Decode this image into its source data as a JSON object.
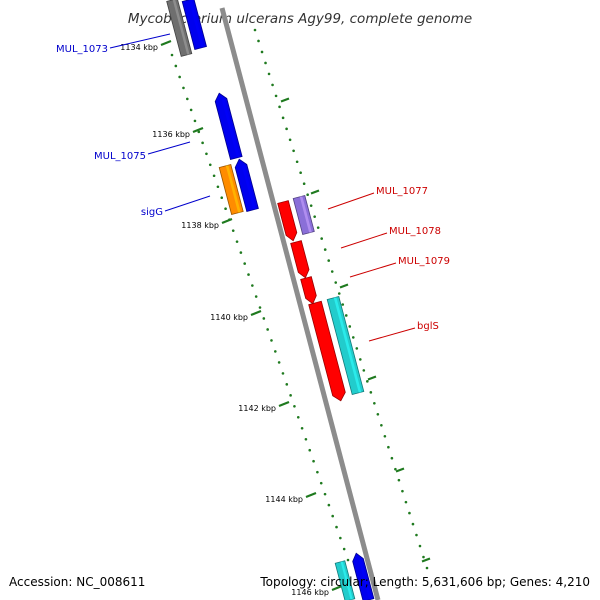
{
  "title": "Mycobacterium ulcerans Agy99, complete genome",
  "footer": {
    "accession": "Accession: NC_008611",
    "summary": "Topology: circular; Length: 5,631,606 bp; Genes: 4,210"
  },
  "colors": {
    "backbone": "#8c8c8c",
    "tick": "#1f7a1f",
    "forward_label": "#0000cc",
    "reverse_label": "#cc0000",
    "gene_blue": "#0000ee",
    "gene_gray": "#6f6f6f",
    "gene_orange": "#ff8c00",
    "gene_red": "#ff0000",
    "gene_purple": "#8a6fd8",
    "gene_cyan": "#22cccc"
  },
  "ticks": [
    {
      "label": "1134 kbp"
    },
    {
      "label": "1136 kbp"
    },
    {
      "label": "1138 kbp"
    },
    {
      "label": "1140 kbp"
    },
    {
      "label": "1142 kbp"
    },
    {
      "label": "1144 kbp"
    },
    {
      "label": "1146 kbp"
    }
  ],
  "gene_labels": [
    {
      "text": "MUL_1073",
      "strand": "forward"
    },
    {
      "text": "MUL_1075",
      "strand": "forward"
    },
    {
      "text": "sigG",
      "strand": "forward"
    },
    {
      "text": "MUL_1077",
      "strand": "reverse"
    },
    {
      "text": "MUL_1078",
      "strand": "reverse"
    },
    {
      "text": "MUL_1079",
      "strand": "reverse"
    },
    {
      "text": "bglS",
      "strand": "reverse"
    }
  ],
  "gene_icons": [
    {
      "name": "gene-gray",
      "color": "gray"
    },
    {
      "name": "gene-mul-1073",
      "color": "blue"
    },
    {
      "name": "gene-mul-1075",
      "color": "blue"
    },
    {
      "name": "gene-blue-2",
      "color": "blue"
    },
    {
      "name": "gene-sigg",
      "color": "orange"
    },
    {
      "name": "gene-mul-1077",
      "color": "purple"
    },
    {
      "name": "gene-red-1",
      "color": "red"
    },
    {
      "name": "gene-mul-1078",
      "color": "red"
    },
    {
      "name": "gene-mul-1079",
      "color": "red"
    },
    {
      "name": "gene-red-4",
      "color": "red"
    },
    {
      "name": "gene-bgls",
      "color": "cyan"
    },
    {
      "name": "gene-bottom-cyan",
      "color": "cyan"
    },
    {
      "name": "gene-bottom-blue",
      "color": "blue"
    }
  ]
}
